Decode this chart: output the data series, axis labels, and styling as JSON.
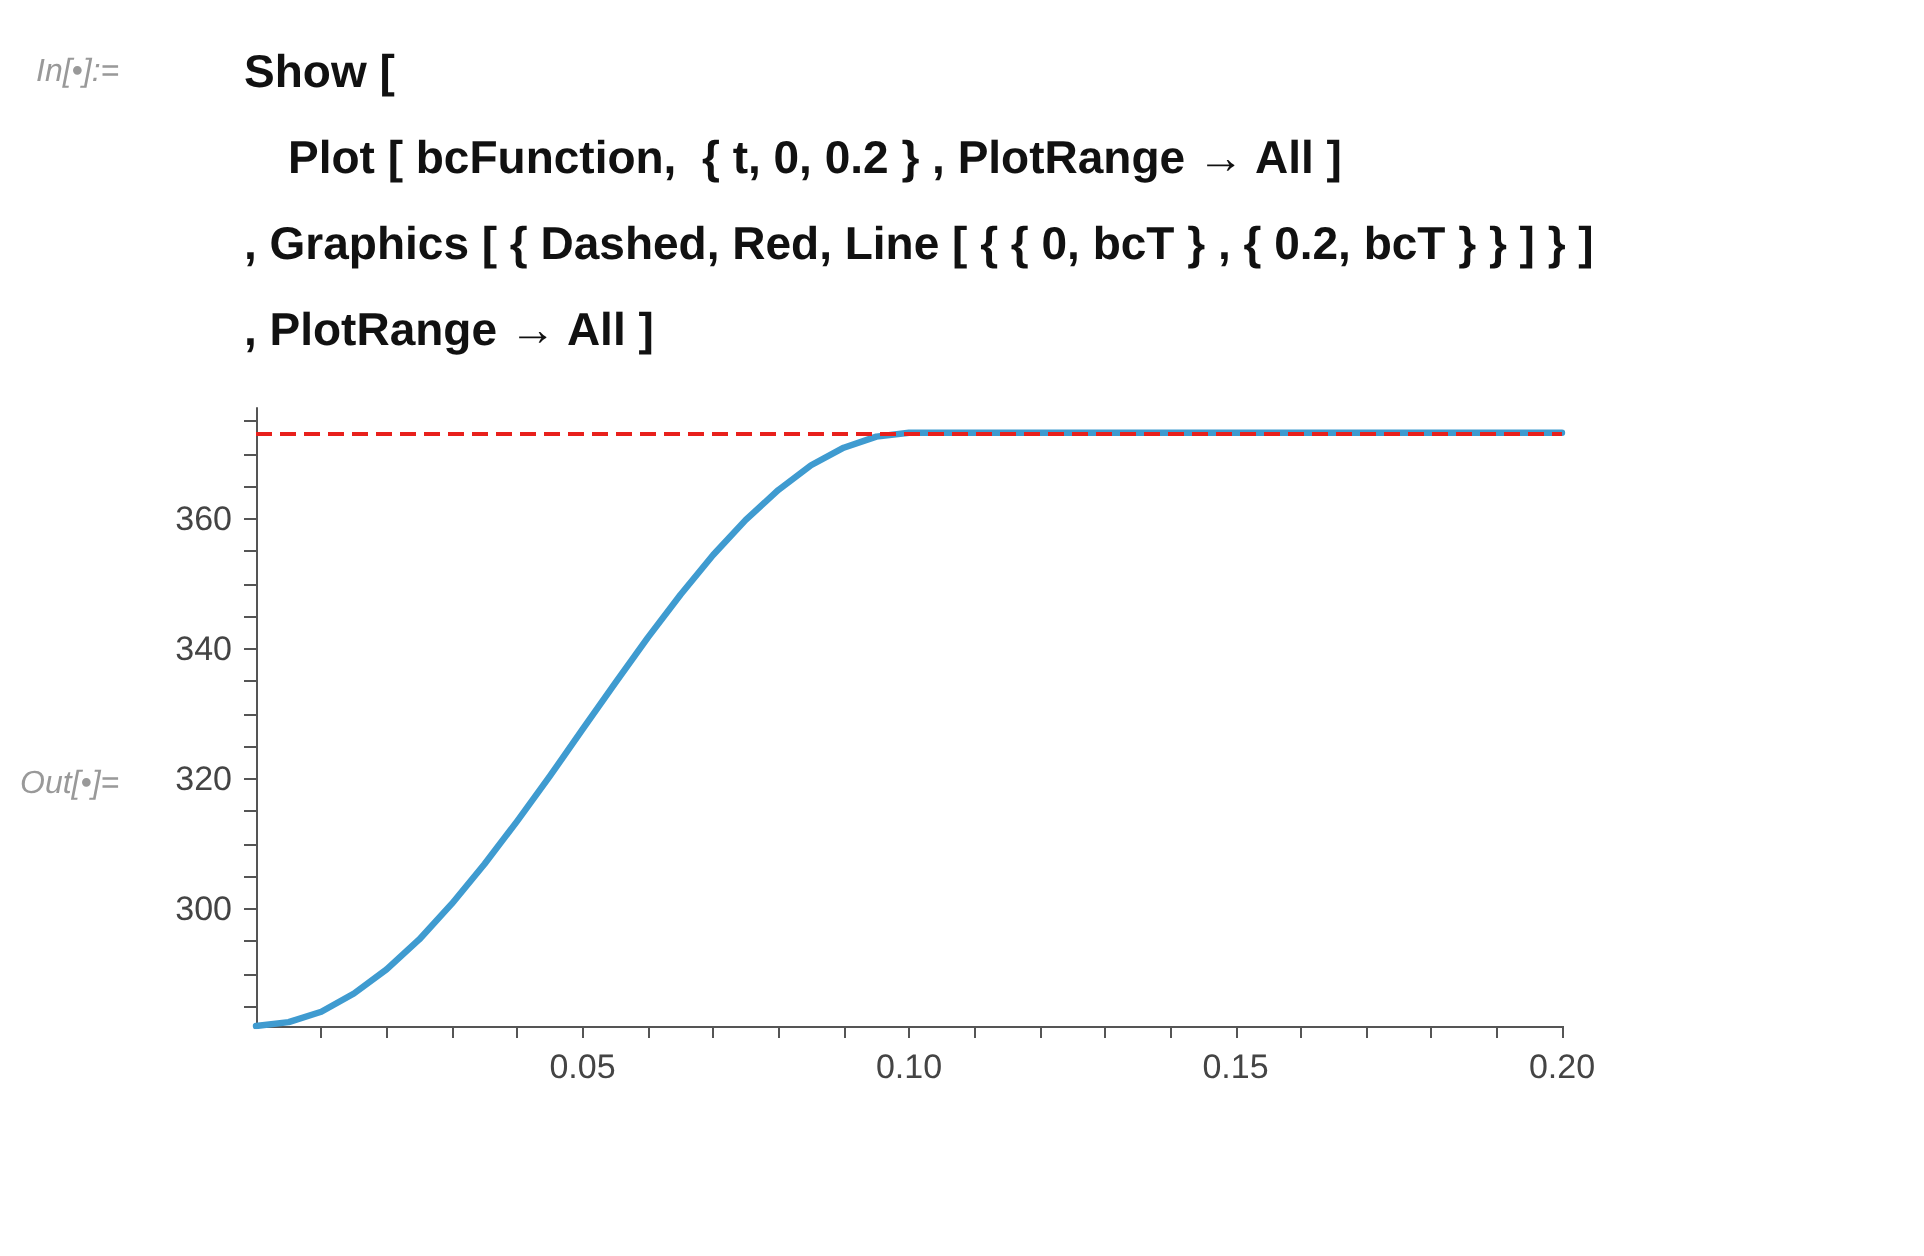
{
  "chart_data": {
    "type": "line",
    "annotations": [
      "In[•]:=",
      "Show [",
      "Plot [ bcFunction,  { t, 0, 0.2 } , PlotRange → All ]",
      ", Graphics [ { Dashed, Red, Line [ { { 0, bcT } , { 0.2, bcT } } ] } ]",
      ", PlotRange → All ]",
      "Out[•]="
    ],
    "x": [
      0,
      0.005,
      0.01,
      0.015,
      0.02,
      0.025,
      0.03,
      0.035,
      0.04,
      0.045,
      0.05,
      0.055,
      0.06,
      0.065,
      0.07,
      0.075,
      0.08,
      0.085,
      0.09,
      0.095,
      0.1,
      0.15,
      0.2
    ],
    "series": [
      {
        "color": "#3f9bd0",
        "values": [
          282,
          282.6,
          284.2,
          287.0,
          290.7,
          295.3,
          300.8,
          306.9,
          313.5,
          320.4,
          327.6,
          334.7,
          341.7,
          348.3,
          354.4,
          359.8,
          364.4,
          368.2,
          370.9,
          372.6,
          373.2,
          373.2,
          373.2
        ]
      }
    ],
    "xlim": [
      0,
      0.2
    ],
    "ylim": [
      282,
      377
    ],
    "xticks": [
      {
        "value": 0.01,
        "label": null
      },
      {
        "value": 0.02,
        "label": null
      },
      {
        "value": 0.03,
        "label": null
      },
      {
        "value": 0.04,
        "label": null
      },
      {
        "value": 0.05,
        "label": "0.05"
      },
      {
        "value": 0.06,
        "label": null
      },
      {
        "value": 0.07,
        "label": null
      },
      {
        "value": 0.08,
        "label": null
      },
      {
        "value": 0.09,
        "label": null
      },
      {
        "value": 0.1,
        "label": "0.10"
      },
      {
        "value": 0.11,
        "label": null
      },
      {
        "value": 0.12,
        "label": null
      },
      {
        "value": 0.13,
        "label": null
      },
      {
        "value": 0.14,
        "label": null
      },
      {
        "value": 0.15,
        "label": "0.15"
      },
      {
        "value": 0.16,
        "label": null
      },
      {
        "value": 0.17,
        "label": null
      },
      {
        "value": 0.18,
        "label": null
      },
      {
        "value": 0.19,
        "label": null
      },
      {
        "value": 0.2,
        "label": "0.20"
      }
    ],
    "yticks": [
      {
        "value": 285,
        "label": null
      },
      {
        "value": 290,
        "label": null
      },
      {
        "value": 295,
        "label": null
      },
      300,
      {
        "value": 305,
        "label": null
      },
      {
        "value": 310,
        "label": null
      },
      {
        "value": 315,
        "label": null
      },
      320,
      {
        "value": 325,
        "label": null
      },
      {
        "value": 330,
        "label": null
      },
      {
        "value": 335,
        "label": null
      },
      340,
      {
        "value": 345,
        "label": null
      },
      {
        "value": 350,
        "label": null
      },
      {
        "value": 355,
        "label": null
      },
      360,
      {
        "value": 365,
        "label": null
      },
      {
        "value": 370,
        "label": null
      },
      {
        "value": 375,
        "label": null
      }
    ],
    "ref_lines": [
      {
        "axis": "y",
        "value": 373.2,
        "color": "#e8201c",
        "line_style": "dashed"
      }
    ],
    "marker": "none",
    "line_style": "solid",
    "grid": false
  }
}
